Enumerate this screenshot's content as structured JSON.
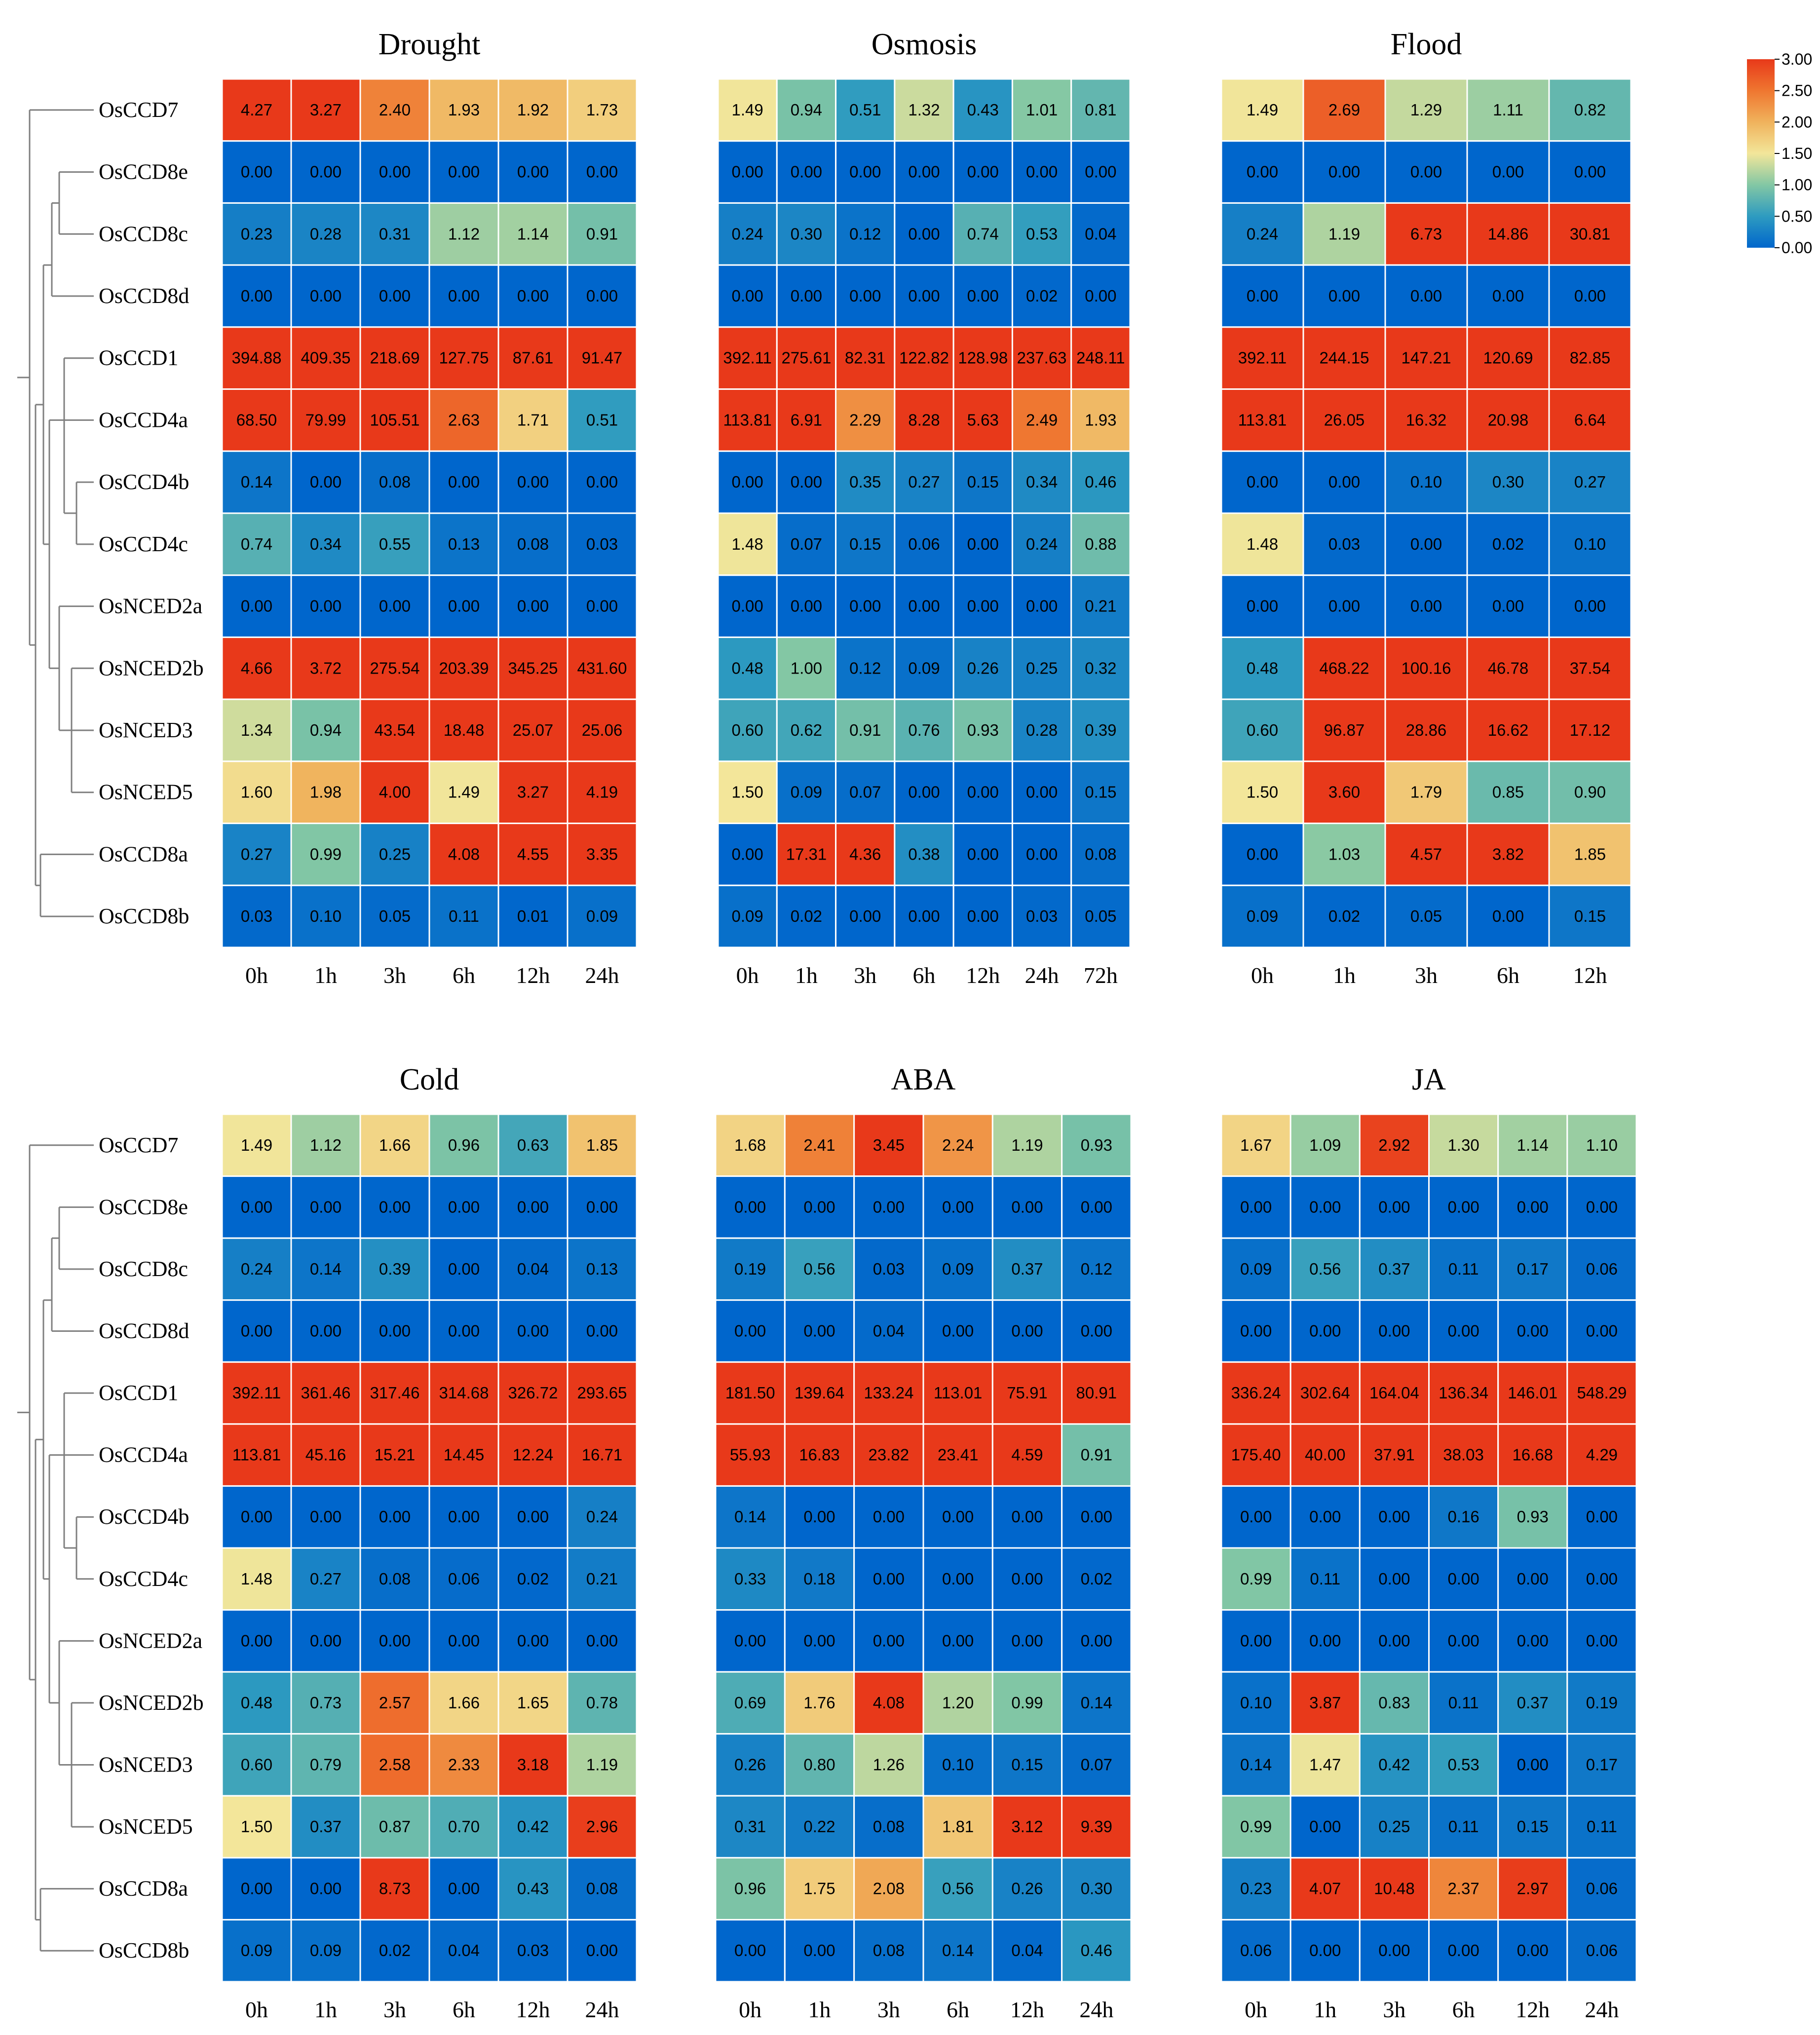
{
  "colors": {
    "low": "#0066cc",
    "q1": "#2e9bc0",
    "q2": "#83c7a4",
    "mid": "#f3e69a",
    "q4": "#f0b25c",
    "q5": "#ef7630",
    "high": "#e8391a",
    "grid": "#ffffff",
    "dendrogram": "#7f7f7f"
  },
  "chart_data": [
    {
      "type": "heatmap",
      "title": "Drought",
      "x": [
        "0h",
        "1h",
        "3h",
        "6h",
        "12h",
        "24h"
      ],
      "genes": [
        "OsCCD7",
        "OsCCD8e",
        "OsCCD8c",
        "OsCCD8d",
        "OsCCD1",
        "OsCCD4a",
        "OsCCD4b",
        "OsCCD4c",
        "OsNCED2a",
        "OsNCED2b",
        "OsNCED3",
        "OsNCED5",
        "OsCCD8a",
        "OsCCD8b"
      ],
      "values": [
        [
          "4.27",
          "3.27",
          "2.40",
          "1.93",
          "1.92",
          "1.73"
        ],
        [
          "0.00",
          "0.00",
          "0.00",
          "0.00",
          "0.00",
          "0.00"
        ],
        [
          "0.23",
          "0.28",
          "0.31",
          "1.12",
          "1.14",
          "0.91"
        ],
        [
          "0.00",
          "0.00",
          "0.00",
          "0.00",
          "0.00",
          "0.00"
        ],
        [
          "394.88",
          "409.35",
          "218.69",
          "127.75",
          "87.61",
          "91.47"
        ],
        [
          "68.50",
          "79.99",
          "105.51",
          "2.63",
          "1.71",
          "0.51"
        ],
        [
          "0.14",
          "0.00",
          "0.08",
          "0.00",
          "0.00",
          "0.00"
        ],
        [
          "0.74",
          "0.34",
          "0.55",
          "0.13",
          "0.08",
          "0.03"
        ],
        [
          "0.00",
          "0.00",
          "0.00",
          "0.00",
          "0.00",
          "0.00"
        ],
        [
          "4.66",
          "3.72",
          "275.54",
          "203.39",
          "345.25",
          "431.60"
        ],
        [
          "1.34",
          "0.94",
          "43.54",
          "18.48",
          "25.07",
          "25.06"
        ],
        [
          "1.60",
          "1.98",
          "4.00",
          "1.49",
          "3.27",
          "4.19"
        ],
        [
          "0.27",
          "0.99",
          "0.25",
          "4.08",
          "4.55",
          "3.35"
        ],
        [
          "0.03",
          "0.10",
          "0.05",
          "0.11",
          "0.01",
          "0.09"
        ]
      ]
    },
    {
      "type": "heatmap",
      "title": "Osmosis",
      "x": [
        "0h",
        "1h",
        "3h",
        "6h",
        "12h",
        "24h",
        "72h"
      ],
      "genes": [],
      "values": [
        [
          "1.49",
          "0.94",
          "0.51",
          "1.32",
          "0.43",
          "1.01",
          "0.81"
        ],
        [
          "0.00",
          "0.00",
          "0.00",
          "0.00",
          "0.00",
          "0.00",
          "0.00"
        ],
        [
          "0.24",
          "0.30",
          "0.12",
          "0.00",
          "0.74",
          "0.53",
          "0.04"
        ],
        [
          "0.00",
          "0.00",
          "0.00",
          "0.00",
          "0.00",
          "0.02",
          "0.00"
        ],
        [
          "392.11",
          "275.61",
          "82.31",
          "122.82",
          "128.98",
          "237.63",
          "248.11"
        ],
        [
          "113.81",
          "6.91",
          "2.29",
          "8.28",
          "5.63",
          "2.49",
          "1.93"
        ],
        [
          "0.00",
          "0.00",
          "0.35",
          "0.27",
          "0.15",
          "0.34",
          "0.46"
        ],
        [
          "1.48",
          "0.07",
          "0.15",
          "0.06",
          "0.00",
          "0.24",
          "0.88"
        ],
        [
          "0.00",
          "0.00",
          "0.00",
          "0.00",
          "0.00",
          "0.00",
          "0.21"
        ],
        [
          "0.48",
          "1.00",
          "0.12",
          "0.09",
          "0.26",
          "0.25",
          "0.32"
        ],
        [
          "0.60",
          "0.62",
          "0.91",
          "0.76",
          "0.93",
          "0.28",
          "0.39"
        ],
        [
          "1.50",
          "0.09",
          "0.07",
          "0.00",
          "0.00",
          "0.00",
          "0.15"
        ],
        [
          "0.00",
          "17.31",
          "4.36",
          "0.38",
          "0.00",
          "0.00",
          "0.08"
        ],
        [
          "0.09",
          "0.02",
          "0.00",
          "0.00",
          "0.00",
          "0.03",
          "0.05"
        ]
      ]
    },
    {
      "type": "heatmap",
      "title": "Flood",
      "x": [
        "0h",
        "1h",
        "3h",
        "6h",
        "12h"
      ],
      "genes": [],
      "values": [
        [
          "1.49",
          "2.69",
          "1.29",
          "1.11",
          "0.82"
        ],
        [
          "0.00",
          "0.00",
          "0.00",
          "0.00",
          "0.00"
        ],
        [
          "0.24",
          "1.19",
          "6.73",
          "14.86",
          "30.81"
        ],
        [
          "0.00",
          "0.00",
          "0.00",
          "0.00",
          "0.00"
        ],
        [
          "392.11",
          "244.15",
          "147.21",
          "120.69",
          "82.85"
        ],
        [
          "113.81",
          "26.05",
          "16.32",
          "20.98",
          "6.64"
        ],
        [
          "0.00",
          "0.00",
          "0.10",
          "0.30",
          "0.27"
        ],
        [
          "1.48",
          "0.03",
          "0.00",
          "0.02",
          "0.10"
        ],
        [
          "0.00",
          "0.00",
          "0.00",
          "0.00",
          "0.00"
        ],
        [
          "0.48",
          "468.22",
          "100.16",
          "46.78",
          "37.54"
        ],
        [
          "0.60",
          "96.87",
          "28.86",
          "16.62",
          "17.12"
        ],
        [
          "1.50",
          "3.60",
          "1.79",
          "0.85",
          "0.90"
        ],
        [
          "0.00",
          "1.03",
          "4.57",
          "3.82",
          "1.85"
        ],
        [
          "0.09",
          "0.02",
          "0.05",
          "0.00",
          "0.15"
        ]
      ]
    },
    {
      "type": "heatmap",
      "title": "Cold",
      "x": [
        "0h",
        "1h",
        "3h",
        "6h",
        "12h",
        "24h"
      ],
      "genes": [
        "OsCCD7",
        "OsCCD8e",
        "OsCCD8c",
        "OsCCD8d",
        "OsCCD1",
        "OsCCD4a",
        "OsCCD4b",
        "OsCCD4c",
        "OsNCED2a",
        "OsNCED2b",
        "OsNCED3",
        "OsNCED5",
        "OsCCD8a",
        "OsCCD8b"
      ],
      "values": [
        [
          "1.49",
          "1.12",
          "1.66",
          "0.96",
          "0.63",
          "1.85"
        ],
        [
          "0.00",
          "0.00",
          "0.00",
          "0.00",
          "0.00",
          "0.00"
        ],
        [
          "0.24",
          "0.14",
          "0.39",
          "0.00",
          "0.04",
          "0.13"
        ],
        [
          "0.00",
          "0.00",
          "0.00",
          "0.00",
          "0.00",
          "0.00"
        ],
        [
          "392.11",
          "361.46",
          "317.46",
          "314.68",
          "326.72",
          "293.65"
        ],
        [
          "113.81",
          "45.16",
          "15.21",
          "14.45",
          "12.24",
          "16.71"
        ],
        [
          "0.00",
          "0.00",
          "0.00",
          "0.00",
          "0.00",
          "0.24"
        ],
        [
          "1.48",
          "0.27",
          "0.08",
          "0.06",
          "0.02",
          "0.21"
        ],
        [
          "0.00",
          "0.00",
          "0.00",
          "0.00",
          "0.00",
          "0.00"
        ],
        [
          "0.48",
          "0.73",
          "2.57",
          "1.66",
          "1.65",
          "0.78"
        ],
        [
          "0.60",
          "0.79",
          "2.58",
          "2.33",
          "3.18",
          "1.19"
        ],
        [
          "1.50",
          "0.37",
          "0.87",
          "0.70",
          "0.42",
          "2.96"
        ],
        [
          "0.00",
          "0.00",
          "8.73",
          "0.00",
          "0.43",
          "0.08"
        ],
        [
          "0.09",
          "0.09",
          "0.02",
          "0.04",
          "0.03",
          "0.00"
        ]
      ]
    },
    {
      "type": "heatmap",
      "title": "ABA",
      "x": [
        "0h",
        "1h",
        "3h",
        "6h",
        "12h",
        "24h"
      ],
      "genes": [],
      "values": [
        [
          "1.68",
          "2.41",
          "3.45",
          "2.24",
          "1.19",
          "0.93"
        ],
        [
          "0.00",
          "0.00",
          "0.00",
          "0.00",
          "0.00",
          "0.00"
        ],
        [
          "0.19",
          "0.56",
          "0.03",
          "0.09",
          "0.37",
          "0.12"
        ],
        [
          "0.00",
          "0.00",
          "0.04",
          "0.00",
          "0.00",
          "0.00"
        ],
        [
          "181.50",
          "139.64",
          "133.24",
          "113.01",
          "75.91",
          "80.91"
        ],
        [
          "55.93",
          "16.83",
          "23.82",
          "23.41",
          "4.59",
          "0.91"
        ],
        [
          "0.14",
          "0.00",
          "0.00",
          "0.00",
          "0.00",
          "0.00"
        ],
        [
          "0.33",
          "0.18",
          "0.00",
          "0.00",
          "0.00",
          "0.02"
        ],
        [
          "0.00",
          "0.00",
          "0.00",
          "0.00",
          "0.00",
          "0.00"
        ],
        [
          "0.69",
          "1.76",
          "4.08",
          "1.20",
          "0.99",
          "0.14"
        ],
        [
          "0.26",
          "0.80",
          "1.26",
          "0.10",
          "0.15",
          "0.07"
        ],
        [
          "0.31",
          "0.22",
          "0.08",
          "1.81",
          "3.12",
          "9.39"
        ],
        [
          "0.96",
          "1.75",
          "2.08",
          "0.56",
          "0.26",
          "0.30"
        ],
        [
          "0.00",
          "0.00",
          "0.08",
          "0.14",
          "0.04",
          "0.46"
        ]
      ]
    },
    {
      "type": "heatmap",
      "title": "JA",
      "x": [
        "0h",
        "1h",
        "3h",
        "6h",
        "12h",
        "24h"
      ],
      "genes": [],
      "values": [
        [
          "1.67",
          "1.09",
          "2.92",
          "1.30",
          "1.14",
          "1.10"
        ],
        [
          "0.00",
          "0.00",
          "0.00",
          "0.00",
          "0.00",
          "0.00"
        ],
        [
          "0.09",
          "0.56",
          "0.37",
          "0.11",
          "0.17",
          "0.06"
        ],
        [
          "0.00",
          "0.00",
          "0.00",
          "0.00",
          "0.00",
          "0.00"
        ],
        [
          "336.24",
          "302.64",
          "164.04",
          "136.34",
          "146.01",
          "548.29"
        ],
        [
          "175.40",
          "40.00",
          "37.91",
          "38.03",
          "16.68",
          "4.29"
        ],
        [
          "0.00",
          "0.00",
          "0.00",
          "0.16",
          "0.93",
          "0.00"
        ],
        [
          "0.99",
          "0.11",
          "0.00",
          "0.00",
          "0.00",
          "0.00"
        ],
        [
          "0.00",
          "0.00",
          "0.00",
          "0.00",
          "0.00",
          "0.00"
        ],
        [
          "0.10",
          "3.87",
          "0.83",
          "0.11",
          "0.37",
          "0.19"
        ],
        [
          "0.14",
          "1.47",
          "0.42",
          "0.53",
          "0.00",
          "0.17"
        ],
        [
          "0.99",
          "0.00",
          "0.25",
          "0.11",
          "0.15",
          "0.11"
        ],
        [
          "0.23",
          "4.07",
          "10.48",
          "2.37",
          "2.97",
          "0.06"
        ],
        [
          "0.06",
          "0.00",
          "0.00",
          "0.00",
          "0.00",
          "0.06"
        ]
      ]
    }
  ],
  "colorbar": {
    "range": [
      0,
      3
    ],
    "ticks": [
      "3.00",
      "2.50",
      "2.00",
      "1.50",
      "1.00",
      "0.50",
      "0.00"
    ]
  }
}
